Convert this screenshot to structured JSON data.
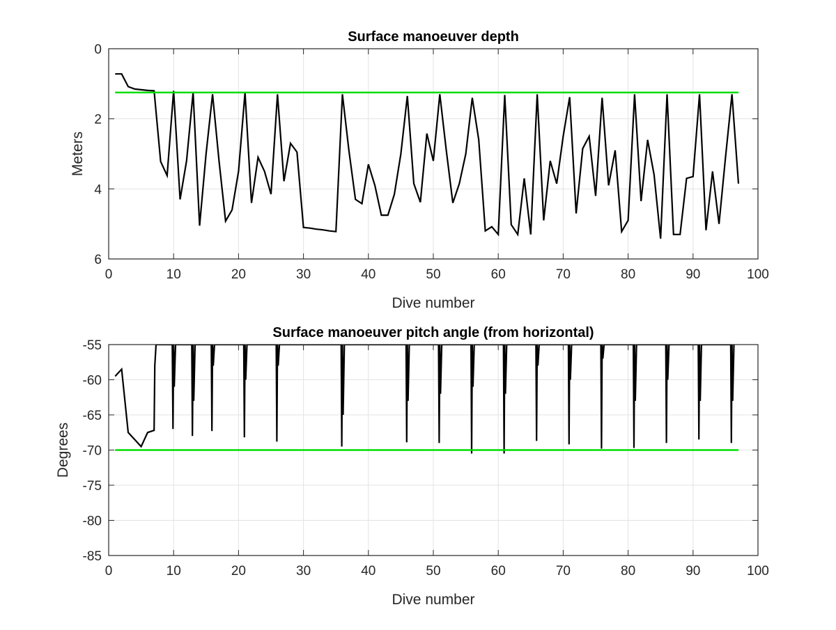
{
  "chart_data": [
    {
      "type": "line",
      "title": "Surface manoeuver depth",
      "xlabel": "Dive number",
      "ylabel": "Meters",
      "xlim": [
        0,
        100
      ],
      "ylim": [
        0,
        6
      ],
      "y_reversed": true,
      "grid": true,
      "xticks": [
        0,
        10,
        20,
        30,
        40,
        50,
        60,
        70,
        80,
        90,
        100
      ],
      "yticks": [
        0,
        2,
        4,
        6
      ],
      "series": [
        {
          "color": "#000000",
          "x": [
            1,
            2,
            3,
            4,
            5,
            6,
            7,
            8,
            9,
            10,
            11,
            12,
            13,
            14,
            15,
            16,
            17,
            18,
            19,
            20,
            21,
            22,
            23,
            24,
            25,
            26,
            27,
            28,
            29,
            30,
            31,
            32,
            33,
            34,
            35,
            36,
            37,
            38,
            39,
            40,
            41,
            42,
            43,
            44,
            45,
            46,
            47,
            48,
            49,
            50,
            51,
            52,
            53,
            54,
            55,
            56,
            57,
            58,
            59,
            60,
            61,
            62,
            63,
            64,
            65,
            66,
            67,
            68,
            69,
            70,
            71,
            72,
            73,
            74,
            75,
            76,
            77,
            78,
            79,
            80,
            81,
            82,
            83,
            84,
            85,
            86,
            87,
            88,
            89,
            90,
            91,
            92,
            93,
            94,
            95,
            96,
            97
          ],
          "y": [
            0.72,
            0.72,
            1.08,
            1.15,
            1.17,
            1.19,
            1.2,
            3.22,
            3.62,
            1.2,
            4.3,
            3.2,
            1.25,
            5.05,
            3.0,
            1.3,
            3.2,
            4.92,
            4.6,
            3.5,
            1.25,
            4.4,
            3.1,
            3.5,
            4.15,
            1.3,
            3.78,
            2.7,
            2.95,
            5.1,
            5.12,
            5.15,
            5.17,
            5.2,
            5.22,
            1.3,
            2.9,
            4.3,
            4.42,
            3.3,
            3.9,
            4.75,
            4.75,
            4.15,
            3.0,
            1.35,
            3.85,
            4.38,
            2.42,
            3.2,
            1.3,
            2.9,
            4.4,
            3.85,
            3.0,
            1.4,
            2.6,
            5.2,
            5.08,
            5.3,
            1.32,
            5.02,
            5.3,
            3.7,
            5.3,
            1.3,
            4.9,
            3.2,
            3.85,
            2.5,
            1.38,
            4.7,
            2.85,
            2.5,
            4.2,
            1.4,
            3.9,
            2.9,
            5.22,
            4.9,
            1.3,
            4.35,
            2.6,
            3.6,
            5.42,
            1.3,
            5.3,
            5.3,
            3.7,
            3.65,
            1.3,
            5.18,
            3.5,
            5.0,
            3.1,
            1.3,
            3.85
          ]
        },
        {
          "color": "#00dd00",
          "x": [
            1,
            97
          ],
          "y": [
            1.25,
            1.25
          ]
        }
      ]
    },
    {
      "type": "line",
      "title": "Surface manoeuver pitch angle (from horizontal)",
      "xlabel": "Dive number",
      "ylabel": "Degrees",
      "xlim": [
        0,
        100
      ],
      "ylim": [
        -85,
        -55
      ],
      "grid": true,
      "xticks": [
        0,
        10,
        20,
        30,
        40,
        50,
        60,
        70,
        80,
        90,
        100
      ],
      "yticks": [
        -85,
        -80,
        -75,
        -70,
        -65,
        -60,
        -55
      ],
      "series": [
        {
          "color": "#000000",
          "x": [
            1,
            2,
            3,
            4,
            5,
            6,
            7,
            7.1,
            7.3,
            9.8,
            9.9,
            10,
            10.1,
            10.3,
            12.8,
            12.9,
            13,
            13.1,
            13.3,
            15.8,
            15.9,
            16,
            16.1,
            16.3,
            20.8,
            20.9,
            21,
            21.1,
            21.3,
            25.8,
            25.9,
            26,
            26.1,
            26.3,
            35.8,
            35.9,
            36,
            36.1,
            36.3,
            45.8,
            45.9,
            46,
            46.1,
            46.3,
            50.8,
            50.9,
            51,
            51.1,
            51.3,
            55.8,
            55.9,
            56,
            56.1,
            56.3,
            60.8,
            60.9,
            61,
            61.1,
            61.3,
            65.8,
            65.9,
            66,
            66.1,
            66.3,
            70.8,
            70.9,
            71,
            71.1,
            71.3,
            75.8,
            75.9,
            76,
            76.1,
            76.3,
            80.8,
            80.9,
            81,
            81.1,
            81.3,
            85.8,
            85.9,
            86,
            86.1,
            86.3,
            90.8,
            90.9,
            91,
            91.1,
            91.3,
            95.8,
            95.9,
            96,
            96.1,
            96.3
          ],
          "y": [
            -59.5,
            -58.5,
            -67.5,
            -68.5,
            -69.5,
            -67.5,
            -67.2,
            -58,
            -55,
            -55,
            -67,
            -55,
            -61,
            -55,
            -55,
            -68,
            -55,
            -63,
            -55,
            -55,
            -67.3,
            -55,
            -58,
            -55,
            -55,
            -68.2,
            -55,
            -60,
            -55,
            -55,
            -68.8,
            -55,
            -58,
            -55,
            -55,
            -69.5,
            -55,
            -65,
            -55,
            -55,
            -68.9,
            -55,
            -63,
            -55,
            -55,
            -69,
            -55,
            -62,
            -55,
            -55,
            -70.5,
            -55,
            -61,
            -55,
            -55,
            -70.5,
            -55,
            -62,
            -55,
            -55,
            -68.7,
            -55,
            -58,
            -55,
            -55,
            -69.2,
            -55,
            -60,
            -55,
            -55,
            -69.8,
            -55,
            -57,
            -55,
            -55,
            -69.7,
            -55,
            -63,
            -55,
            -55,
            -69,
            -55,
            -60,
            -55,
            -55,
            -68.5,
            -55,
            -63,
            -55,
            -55,
            -69,
            -55,
            -63,
            -55
          ]
        },
        {
          "color": "#00dd00",
          "x": [
            1,
            97
          ],
          "y": [
            -70,
            -70
          ]
        }
      ]
    }
  ]
}
